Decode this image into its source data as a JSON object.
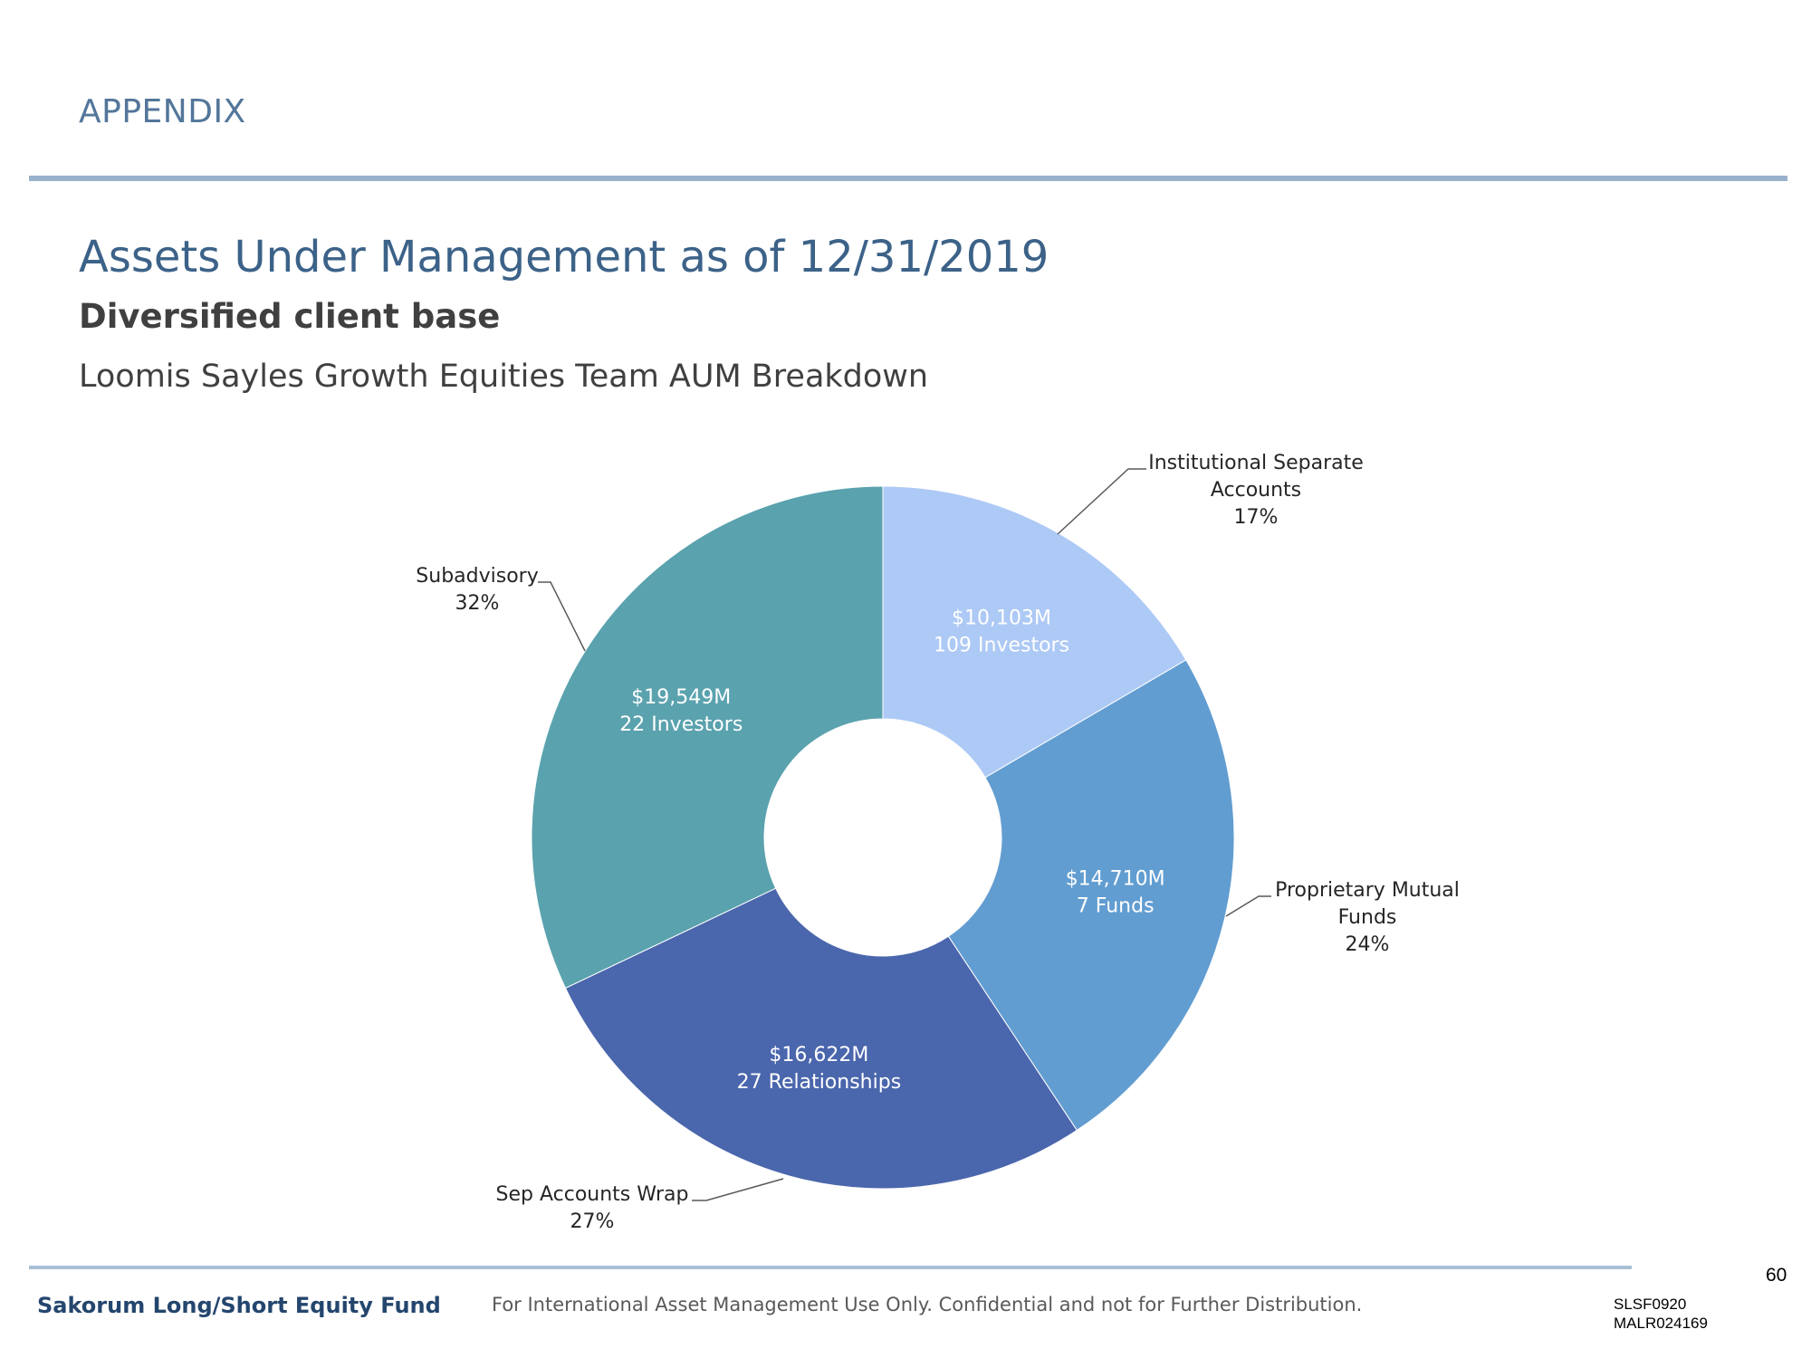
{
  "header": {
    "section": "APPENDIX",
    "title": "Assets Under Management as of 12/31/2019",
    "subtitle": "Diversified client base"
  },
  "chart_data": {
    "type": "pie",
    "donut": true,
    "title": "Loomis Sayles Growth Equities Team AUM Breakdown",
    "unit": "$M",
    "slices": [
      {
        "name": "Institutional Separate Accounts",
        "label_lines": [
          "Institutional Separate",
          "Accounts"
        ],
        "percent_label": "17%",
        "value": 10103,
        "inner_lines": [
          "$10,103M",
          "109 Investors"
        ],
        "color": "#adc9f5"
      },
      {
        "name": "Proprietary Mutual Funds",
        "label_lines": [
          "Proprietary Mutual",
          "Funds"
        ],
        "percent_label": "24%",
        "value": 14710,
        "inner_lines": [
          "$14,710M",
          "7 Funds"
        ],
        "color": "#629dd1"
      },
      {
        "name": "Sep Accounts Wrap",
        "label_lines": [
          "Sep Accounts Wrap"
        ],
        "percent_label": "27%",
        "value": 16622,
        "inner_lines": [
          "$16,622M",
          "27 Relationships"
        ],
        "color": "#4a66ac"
      },
      {
        "name": "Subadvisory",
        "label_lines": [
          "Subadvisory"
        ],
        "percent_label": "32%",
        "value": 19549,
        "inner_lines": [
          "$19,549M",
          "22 Investors"
        ],
        "color": "#5aa2ae"
      }
    ]
  },
  "footer": {
    "page_number": "60",
    "fund_name": "Sakorum Long/Short Equity Fund",
    "disclaimer": "For International Asset Management Use Only. Confidential and not for Further Distribution.",
    "code_1": "SLSF0920",
    "code_2": "MALR024169"
  }
}
